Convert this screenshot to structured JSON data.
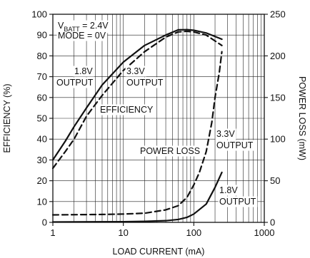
{
  "chart_data": {
    "type": "line",
    "title": "",
    "xlabel": "LOAD CURRENT (mA)",
    "ylabel": "EFFICIENCY (%)",
    "y2label": "POWER LOSS (mW)",
    "xscale": "log",
    "xlim": [
      1,
      1000
    ],
    "ylim": [
      0,
      100
    ],
    "y2lim": [
      0,
      250
    ],
    "grid": true,
    "x_ticks": [
      1,
      10,
      100,
      1000
    ],
    "x_tick_labels": [
      "1",
      "10",
      "100",
      "1000"
    ],
    "y_ticks": [
      0,
      10,
      20,
      30,
      40,
      50,
      60,
      70,
      80,
      90,
      100
    ],
    "y_tick_labels": [
      "0",
      "10",
      "20",
      "30",
      "40",
      "50",
      "60",
      "70",
      "80",
      "90",
      "100"
    ],
    "y2_ticks": [
      0,
      50,
      100,
      150,
      200,
      250
    ],
    "y2_tick_labels": [
      "0",
      "50",
      "100",
      "150",
      "200",
      "250"
    ],
    "annotations": {
      "vbatt_main": "V",
      "vbatt_sub": "BATT",
      "vbatt_value": " = 2.4V",
      "mode": "MODE = 0V",
      "eff18_line1": "1.8V",
      "eff18_line2": "OUTPUT",
      "eff33_line1": "3.3V",
      "eff33_line2": "OUTPUT",
      "efficiency": "EFFICIENCY",
      "power_loss": "POWER LOSS",
      "loss33_line1": "3.3V",
      "loss33_line2": "OUTPUT",
      "loss18_line1": "1.8V",
      "loss18_line2": "OUTPUT"
    },
    "series": [
      {
        "kind": "efficiency",
        "output": "1.8V",
        "axis": "left",
        "style": "solid",
        "x": [
          1,
          1.5,
          2,
          3,
          5,
          10,
          20,
          40,
          60,
          80,
          100,
          150,
          250
        ],
        "y": [
          30,
          39,
          46,
          55,
          66,
          77,
          85,
          90,
          92.5,
          92.6,
          92.3,
          91,
          88
        ]
      },
      {
        "kind": "efficiency",
        "output": "3.3V",
        "axis": "left",
        "style": "dashed",
        "x": [
          1,
          1.5,
          2,
          3,
          5,
          10,
          20,
          40,
          60,
          80,
          100,
          150,
          250
        ],
        "y": [
          26,
          34,
          40,
          51,
          61,
          73,
          82,
          89,
          91.5,
          91.8,
          91.5,
          90,
          85
        ]
      },
      {
        "kind": "power_loss",
        "output": "3.3V",
        "axis": "right",
        "style": "dashed",
        "x": [
          1,
          5,
          10,
          20,
          40,
          60,
          80,
          100,
          120,
          150,
          180,
          200,
          230,
          250
        ],
        "y": [
          9,
          9.5,
          10,
          11,
          15,
          20,
          30,
          45,
          60,
          85,
          120,
          150,
          180,
          205
        ]
      },
      {
        "kind": "power_loss",
        "output": "1.8V",
        "axis": "right",
        "style": "solid",
        "x": [
          1,
          10,
          20,
          40,
          60,
          80,
          100,
          150,
          200,
          250
        ],
        "y": [
          0.5,
          0.8,
          1.2,
          2,
          3.5,
          6,
          10,
          22,
          42,
          60
        ]
      }
    ]
  }
}
